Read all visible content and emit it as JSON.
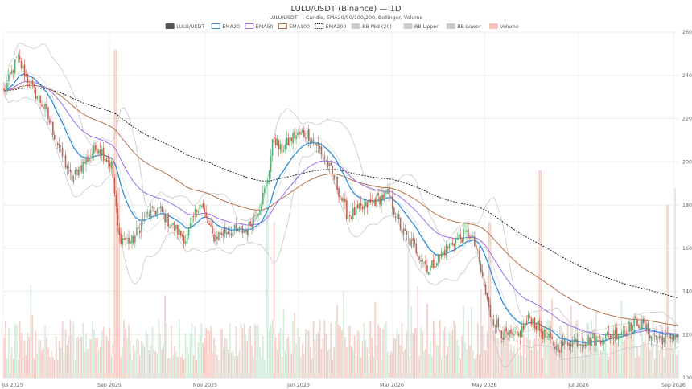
{
  "chart_data": {
    "type": "candlestick",
    "title": "LULU/USDT (Binance) — 1D",
    "subtitle": "LULU/USDT — Candle, EMA20/50/100/200, Bollinger, Volume",
    "legend": [
      {
        "label": "LULU/USDT",
        "color": "#555555",
        "kind": "box"
      },
      {
        "label": "EMA20",
        "color": "#2e8fdc",
        "kind": "box"
      },
      {
        "label": "EMA50",
        "color": "#9b6ee8",
        "kind": "box"
      },
      {
        "label": "EMA100",
        "color": "#b5724d",
        "kind": "box"
      },
      {
        "label": "EMA200",
        "color": "#222222",
        "kind": "dashed"
      },
      {
        "label": "BB Mid (20)",
        "color": "#cccccc",
        "kind": "box"
      },
      {
        "label": "BB Upper",
        "color": "#cccccc",
        "kind": "box"
      },
      {
        "label": "BB Lower",
        "color": "#cccccc",
        "kind": "box"
      },
      {
        "label": "Volume",
        "color": "#f5c5bd",
        "kind": "box"
      }
    ],
    "legend_position": "top-center",
    "grid": true,
    "up_color": "#5fae7c",
    "down_color": "#c9604f",
    "x_axis": {
      "ticks": [
        "Jul 2025",
        "Sep 2025",
        "Nov 2025",
        "Jan 2026",
        "Mar 2026",
        "May 2026",
        "Jul 2026",
        "Sep 2026"
      ],
      "range": [
        "Jul 2025",
        "Sep 2026"
      ]
    },
    "y_axis": {
      "ticks": [
        100,
        120,
        140,
        160,
        180,
        200,
        220,
        240,
        260
      ],
      "ylim": [
        100,
        260
      ],
      "side": "right"
    },
    "price_waypoints": [
      {
        "t": 0.0,
        "v": 232
      },
      {
        "t": 0.01,
        "v": 240
      },
      {
        "t": 0.02,
        "v": 248
      },
      {
        "t": 0.04,
        "v": 235
      },
      {
        "t": 0.06,
        "v": 225
      },
      {
        "t": 0.08,
        "v": 208
      },
      {
        "t": 0.1,
        "v": 192
      },
      {
        "t": 0.12,
        "v": 200
      },
      {
        "t": 0.14,
        "v": 207
      },
      {
        "t": 0.16,
        "v": 198
      },
      {
        "t": 0.17,
        "v": 165
      },
      {
        "t": 0.19,
        "v": 163
      },
      {
        "t": 0.21,
        "v": 175
      },
      {
        "t": 0.23,
        "v": 178
      },
      {
        "t": 0.25,
        "v": 170
      },
      {
        "t": 0.27,
        "v": 164
      },
      {
        "t": 0.29,
        "v": 182
      },
      {
        "t": 0.31,
        "v": 165
      },
      {
        "t": 0.33,
        "v": 168
      },
      {
        "t": 0.36,
        "v": 168
      },
      {
        "t": 0.38,
        "v": 180
      },
      {
        "t": 0.39,
        "v": 190
      },
      {
        "t": 0.4,
        "v": 212
      },
      {
        "t": 0.41,
        "v": 205
      },
      {
        "t": 0.43,
        "v": 212
      },
      {
        "t": 0.45,
        "v": 213
      },
      {
        "t": 0.47,
        "v": 205
      },
      {
        "t": 0.49,
        "v": 192
      },
      {
        "t": 0.51,
        "v": 175
      },
      {
        "t": 0.53,
        "v": 178
      },
      {
        "t": 0.55,
        "v": 182
      },
      {
        "t": 0.57,
        "v": 185
      },
      {
        "t": 0.59,
        "v": 168
      },
      {
        "t": 0.61,
        "v": 160
      },
      {
        "t": 0.63,
        "v": 150
      },
      {
        "t": 0.65,
        "v": 158
      },
      {
        "t": 0.67,
        "v": 164
      },
      {
        "t": 0.69,
        "v": 167
      },
      {
        "t": 0.7,
        "v": 160
      },
      {
        "t": 0.72,
        "v": 130
      },
      {
        "t": 0.74,
        "v": 120
      },
      {
        "t": 0.76,
        "v": 118
      },
      {
        "t": 0.78,
        "v": 128
      },
      {
        "t": 0.8,
        "v": 120
      },
      {
        "t": 0.82,
        "v": 114
      },
      {
        "t": 0.84,
        "v": 117
      },
      {
        "t": 0.86,
        "v": 117
      },
      {
        "t": 0.88,
        "v": 118
      },
      {
        "t": 0.9,
        "v": 120
      },
      {
        "t": 0.92,
        "v": 122
      },
      {
        "t": 0.94,
        "v": 126
      },
      {
        "t": 0.96,
        "v": 120
      },
      {
        "t": 0.98,
        "v": 118
      },
      {
        "t": 1.0,
        "v": 120
      }
    ],
    "volume_spikes": [
      {
        "t": 0.165,
        "level": 0.95
      },
      {
        "t": 0.17,
        "level": 0.55
      },
      {
        "t": 0.39,
        "level": 0.55
      },
      {
        "t": 0.4,
        "level": 0.45
      },
      {
        "t": 0.6,
        "level": 0.4
      },
      {
        "t": 0.72,
        "level": 0.45
      },
      {
        "t": 0.795,
        "level": 0.6
      },
      {
        "t": 0.985,
        "level": 0.5
      },
      {
        "t": 0.995,
        "level": 0.55
      }
    ]
  }
}
